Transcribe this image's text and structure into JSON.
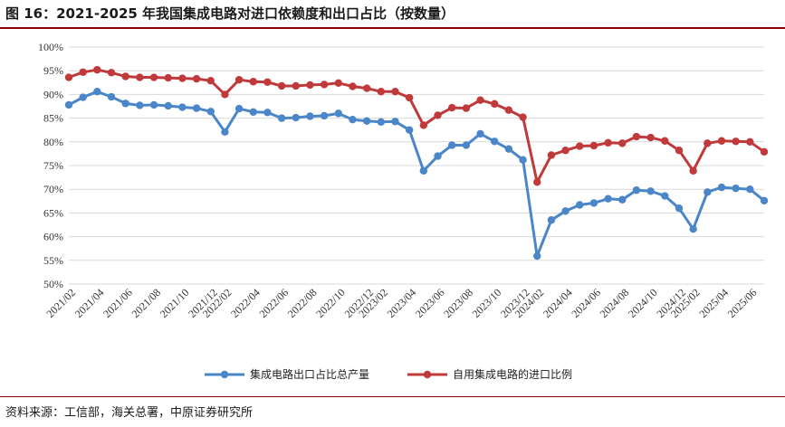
{
  "header": {
    "title": "图 16：2021-2025 年我国集成电路对进口依赖度和出口占比（按数量）"
  },
  "footer": {
    "source": "资料来源：工信部，海关总署，中原证券研究所"
  },
  "colors": {
    "series1": "#4a86c8",
    "series2": "#c0393b",
    "rule": "#8b0000"
  },
  "chart_data": {
    "type": "line",
    "title": "图 16：2021-2025 年我国集成电路对进口依赖度和出口占比（按数量）",
    "xlabel": "",
    "ylabel": "",
    "ylim": [
      50,
      100
    ],
    "yticks": [
      "50%",
      "55%",
      "60%",
      "65%",
      "70%",
      "75%",
      "80%",
      "85%",
      "90%",
      "95%",
      "100%"
    ],
    "grid": true,
    "legend_position": "bottom",
    "x": [
      "2021/02",
      "2021/03",
      "2021/04",
      "2021/05",
      "2021/06",
      "2021/07",
      "2021/08",
      "2021/09",
      "2021/10",
      "2021/11",
      "2021/12",
      "2022/02",
      "2022/03",
      "2022/04",
      "2022/05",
      "2022/06",
      "2022/07",
      "2022/08",
      "2022/09",
      "2022/10",
      "2022/11",
      "2022/12",
      "2023/02",
      "2023/03",
      "2023/04",
      "2023/05",
      "2023/06",
      "2023/07",
      "2023/08",
      "2023/09",
      "2023/10",
      "2023/11",
      "2023/12",
      "2024/02",
      "2024/03",
      "2024/04",
      "2024/05",
      "2024/06",
      "2024/07",
      "2024/08",
      "2024/09",
      "2024/10",
      "2024/11",
      "2024/12",
      "2025/02",
      "2025/03",
      "2025/04",
      "2025/05",
      "2025/06",
      "2025/07"
    ],
    "xticks": [
      "2021/02",
      "2021/04",
      "2021/06",
      "2021/08",
      "2021/10",
      "2021/12",
      "2022/02",
      "2022/04",
      "2022/06",
      "2022/08",
      "2022/10",
      "2022/12",
      "2023/02",
      "2023/04",
      "2023/06",
      "2023/08",
      "2023/10",
      "2023/12",
      "2024/02",
      "2024/04",
      "2024/06",
      "2024/08",
      "2024/10",
      "2024/12",
      "2025/02",
      "2025/04",
      "2025/06"
    ],
    "series": [
      {
        "name": "集成电路出口占比总产量",
        "values": [
          87.8,
          89.4,
          90.6,
          89.5,
          88.1,
          87.7,
          87.8,
          87.6,
          87.3,
          87.1,
          86.4,
          82.1,
          87.0,
          86.3,
          86.2,
          85.0,
          85.1,
          85.4,
          85.5,
          86.0,
          84.7,
          84.4,
          84.2,
          84.3,
          82.5,
          73.9,
          77.0,
          79.3,
          79.3,
          81.7,
          80.1,
          78.5,
          76.2,
          55.9,
          63.5,
          65.4,
          66.7,
          67.1,
          68.0,
          67.8,
          69.8,
          69.6,
          68.6,
          66.0,
          61.6,
          69.4,
          70.4,
          70.2,
          70.0,
          67.6
        ]
      },
      {
        "name": "自用集成电路的进口比例",
        "values": [
          93.6,
          94.7,
          95.2,
          94.6,
          93.8,
          93.6,
          93.6,
          93.5,
          93.4,
          93.3,
          92.9,
          90.0,
          93.1,
          92.7,
          92.6,
          91.8,
          91.8,
          92.0,
          92.1,
          92.4,
          91.7,
          91.3,
          90.6,
          90.6,
          89.3,
          83.5,
          85.6,
          87.2,
          87.1,
          88.8,
          88.0,
          86.7,
          85.2,
          71.5,
          77.2,
          78.2,
          79.1,
          79.2,
          79.8,
          79.7,
          81.1,
          80.9,
          80.2,
          78.2,
          73.9,
          79.7,
          80.2,
          80.1,
          80.0,
          77.9
        ]
      }
    ]
  }
}
